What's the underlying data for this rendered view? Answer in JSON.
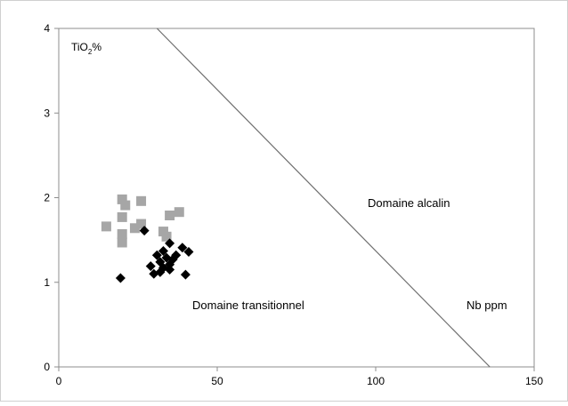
{
  "chart_data": {
    "type": "scatter",
    "xlim": [
      0,
      150
    ],
    "ylim": [
      0,
      4
    ],
    "x_ticks": [
      "0",
      "50",
      "100",
      "150"
    ],
    "y_ticks": [
      "0",
      "1",
      "2",
      "3",
      "4"
    ],
    "grid": false,
    "legend": "none",
    "ylabel_base": "TiO",
    "ylabel_sub": "2",
    "ylabel_suffix": "%",
    "xlabel": "Nb ppm",
    "annotations": {
      "alkaline": "Domaine alcalin",
      "transitional": "Domaine transitionnel"
    },
    "boundary_line": [
      [
        31,
        4
      ],
      [
        136,
        0
      ]
    ],
    "series": [
      {
        "marker": "square",
        "color": "#a6a6a6",
        "points": [
          [
            20,
            1.98
          ],
          [
            26,
            1.96
          ],
          [
            21,
            1.91
          ],
          [
            20,
            1.77
          ],
          [
            26,
            1.69
          ],
          [
            15,
            1.66
          ],
          [
            24,
            1.64
          ],
          [
            33,
            1.6
          ],
          [
            34,
            1.54
          ],
          [
            20,
            1.57
          ],
          [
            20,
            1.47
          ],
          [
            35,
            1.79
          ],
          [
            38,
            1.83
          ]
        ]
      },
      {
        "marker": "diamond",
        "color": "#000000",
        "points": [
          [
            27,
            1.61
          ],
          [
            19.5,
            1.05
          ],
          [
            35,
            1.46
          ],
          [
            39,
            1.41
          ],
          [
            41,
            1.36
          ],
          [
            37,
            1.32
          ],
          [
            34,
            1.29
          ],
          [
            31,
            1.32
          ],
          [
            33,
            1.37
          ],
          [
            32,
            1.24
          ],
          [
            36,
            1.27
          ],
          [
            29,
            1.19
          ],
          [
            33,
            1.17
          ],
          [
            35,
            1.21
          ],
          [
            30,
            1.1
          ],
          [
            32,
            1.12
          ],
          [
            35,
            1.15
          ],
          [
            40,
            1.09
          ]
        ]
      }
    ]
  }
}
